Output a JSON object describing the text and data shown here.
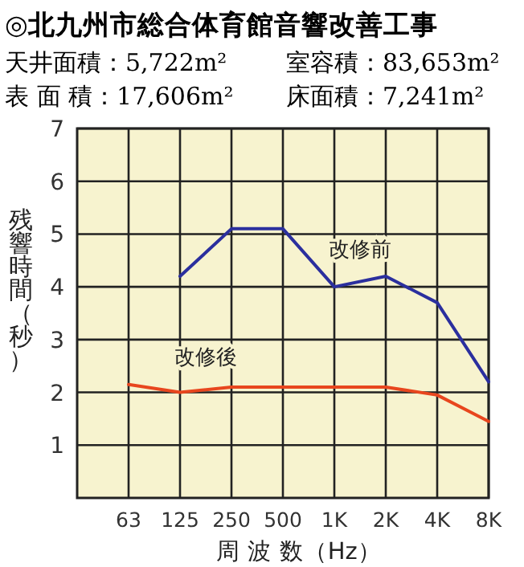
{
  "chart_data": {
    "type": "line",
    "title": "◎北九州市総合体育館音響改善工事",
    "annotations": [
      "天井面積：5,722m²",
      "室容積：83,653m²",
      "表 面 積：17,606m²",
      "床面積：7,241m²"
    ],
    "xlabel": "周 波 数（Hz）",
    "ylabel": "残響時間（秒）",
    "categories": [
      "63",
      "125",
      "250",
      "500",
      "1K",
      "2K",
      "4K",
      "8K"
    ],
    "ylim": [
      0,
      7
    ],
    "yticks": [
      1,
      2,
      3,
      4,
      5,
      6,
      7
    ],
    "grid": true,
    "legend": false,
    "marker": "none",
    "series": [
      {
        "name": "改修前",
        "color": "#2b2f9e",
        "values": [
          null,
          4.2,
          5.1,
          5.1,
          4.0,
          4.2,
          3.7,
          2.2
        ]
      },
      {
        "name": "改修後",
        "color": "#e8461e",
        "values": [
          2.15,
          2.0,
          2.1,
          2.1,
          2.1,
          2.1,
          1.95,
          1.45
        ]
      }
    ]
  }
}
